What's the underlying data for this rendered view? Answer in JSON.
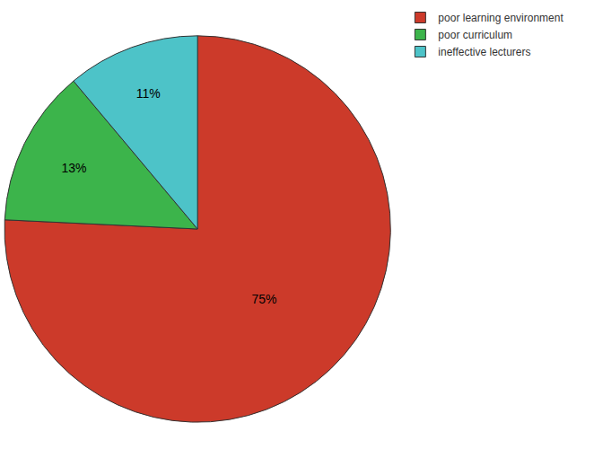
{
  "chart_data": {
    "type": "pie",
    "categories": [
      "poor learning environment",
      "poor curriculum",
      "ineffective lecturers"
    ],
    "values": [
      75,
      13,
      11
    ],
    "value_labels": [
      "75%",
      "13%",
      "11%"
    ],
    "colors": [
      "#cc3a2a",
      "#3cb44b",
      "#4dc3c8"
    ],
    "data_labels": true,
    "legend": "top right"
  }
}
